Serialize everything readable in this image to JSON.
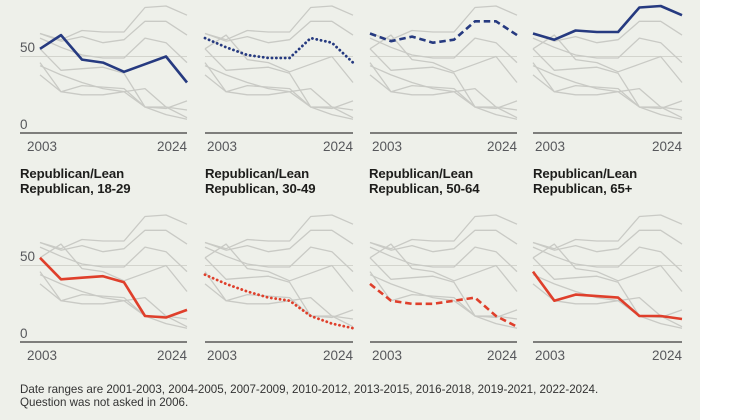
{
  "page": {
    "background": "#eef0ea"
  },
  "footer": {
    "line1": "Date ranges are 2001-2003, 2004-2005, 2007-2009, 2010-2012, 2013-2015, 2016-2018, 2019-2021, 2022-2024.",
    "line2": "Question was not asked in 2006."
  },
  "chart_data": {
    "type": "line",
    "layout": "small multiples, 2 rows x 4 columns; each panel highlights one series with all other series in gray",
    "x_categories": [
      "2001-2003",
      "2004-2005",
      "2007-2009",
      "2010-2012",
      "2013-2015",
      "2016-2018",
      "2019-2021",
      "2022-2024"
    ],
    "x_tick_labels": [
      "2003",
      "2024"
    ],
    "y_tick_labels": [
      "50",
      "0"
    ],
    "y_ticks": [
      50,
      0
    ],
    "ylim": [
      0,
      90
    ],
    "grid": "single horizontal gridline at y=50; dark baseline at y=0",
    "legend_position": "none",
    "colors": {
      "highlight_top": "#263a80",
      "highlight_bottom": "#df3f2b",
      "other": "#c9cac5",
      "gridline": "#d3d4cd",
      "axis": "#3b3b3b"
    },
    "series": [
      {
        "id": "top-col1",
        "row": "top",
        "style": "solid",
        "values": [
          55,
          64,
          48,
          46,
          40,
          45,
          50,
          33
        ]
      },
      {
        "id": "top-col2",
        "row": "top",
        "style": "dotted",
        "values": [
          62,
          56,
          51,
          49,
          49,
          62,
          59,
          46
        ]
      },
      {
        "id": "top-col3",
        "row": "top",
        "style": "dashed",
        "values": [
          65,
          60,
          63,
          59,
          61,
          73,
          73,
          64
        ]
      },
      {
        "id": "top-col4",
        "row": "top",
        "style": "solid",
        "values": [
          65,
          61,
          67,
          66,
          66,
          82,
          83,
          77
        ]
      },
      {
        "id": "rep-18-29",
        "row": "bottom",
        "style": "solid",
        "values": [
          55,
          41,
          42,
          43,
          39,
          17,
          16,
          21
        ]
      },
      {
        "id": "rep-30-49",
        "row": "bottom",
        "style": "dotted",
        "values": [
          44,
          38,
          33,
          29,
          27,
          17,
          12,
          9
        ]
      },
      {
        "id": "rep-50-64",
        "row": "bottom",
        "style": "dashed",
        "values": [
          38,
          27,
          25,
          25,
          27,
          29,
          17,
          10
        ]
      },
      {
        "id": "rep-65plus",
        "row": "bottom",
        "style": "solid",
        "values": [
          46,
          27,
          31,
          30,
          29,
          17,
          17,
          15
        ]
      }
    ],
    "panels": [
      {
        "row": "top",
        "col": 0,
        "highlight": "top-col1"
      },
      {
        "row": "top",
        "col": 1,
        "highlight": "top-col2"
      },
      {
        "row": "top",
        "col": 2,
        "highlight": "top-col3"
      },
      {
        "row": "top",
        "col": 3,
        "highlight": "top-col4"
      },
      {
        "row": "bottom",
        "col": 0,
        "highlight": "rep-18-29",
        "title_line1": "Republican/Lean",
        "title_line2": "Republican, 18-29"
      },
      {
        "row": "bottom",
        "col": 1,
        "highlight": "rep-30-49",
        "title_line1": "Republican/Lean",
        "title_line2": "Republican, 30-49"
      },
      {
        "row": "bottom",
        "col": 2,
        "highlight": "rep-50-64",
        "title_line1": "Republican/Lean",
        "title_line2": "Republican, 50-64"
      },
      {
        "row": "bottom",
        "col": 3,
        "highlight": "rep-65plus",
        "title_line1": "Republican/Lean",
        "title_line2": "Republican, 65+"
      }
    ]
  }
}
